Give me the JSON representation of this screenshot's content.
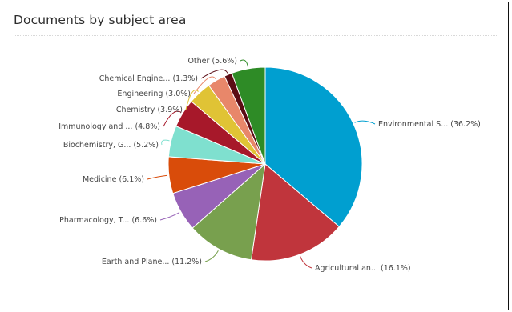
{
  "panel": {
    "title": "Documents by subject area"
  },
  "chart_data": {
    "type": "pie",
    "title": "Documents by subject area",
    "slices": [
      {
        "label": "Environmental S... (36.2%)",
        "value": 36.2,
        "color": "#009fd0"
      },
      {
        "label": "Agricultural an... (16.1%)",
        "value": 16.1,
        "color": "#c0353c"
      },
      {
        "label": "Earth and Plane... (11.2%)",
        "value": 11.2,
        "color": "#78a04e"
      },
      {
        "label": "Pharmacology, T... (6.6%)",
        "value": 6.6,
        "color": "#9762b7"
      },
      {
        "label": "Medicine (6.1%)",
        "value": 6.1,
        "color": "#d94c0a"
      },
      {
        "label": "Biochemistry, G... (5.2%)",
        "value": 5.2,
        "color": "#7fe0cf"
      },
      {
        "label": "Immunology and ... (4.8%)",
        "value": 4.8,
        "color": "#a7182a"
      },
      {
        "label": "Chemistry (3.9%)",
        "value": 3.9,
        "color": "#e0c335"
      },
      {
        "label": "Engineering (3.0%)",
        "value": 3.0,
        "color": "#e8876a"
      },
      {
        "label": "Chemical Engine... (1.3%)",
        "value": 1.3,
        "color": "#5b0c14"
      },
      {
        "label": "Other (5.6%)",
        "value": 5.6,
        "color": "#2e8b26"
      }
    ]
  }
}
